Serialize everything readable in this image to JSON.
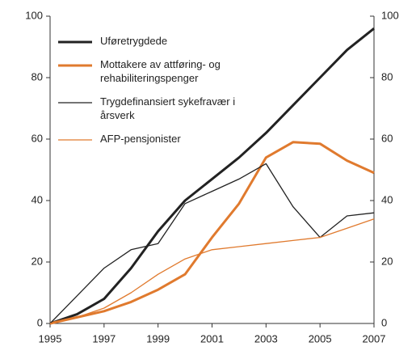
{
  "chart_data": {
    "type": "line",
    "x": [
      1995,
      1996,
      1997,
      1998,
      1999,
      2000,
      2001,
      2002,
      2003,
      2004,
      2005,
      2006,
      2007
    ],
    "xlim": [
      1995,
      2007
    ],
    "xticks": [
      1995,
      1997,
      1999,
      2001,
      2003,
      2005,
      2007
    ],
    "ylim": [
      0,
      100
    ],
    "yticks": [
      0,
      20,
      40,
      60,
      80,
      100
    ],
    "y2lim": [
      0,
      100
    ],
    "y2ticks": [
      0,
      20,
      40,
      60,
      80,
      100
    ],
    "legend": "upper left",
    "series": [
      {
        "name": "Uføretrygdede",
        "color": "#222222",
        "line_width": 3,
        "values": [
          0,
          3,
          8,
          18,
          30,
          40,
          47,
          54,
          62,
          71,
          80,
          89,
          96
        ]
      },
      {
        "name": "Mottakere av attføring- og rehabiliteringspenger",
        "color": "#e07a2e",
        "line_width": 3,
        "values": [
          0,
          2,
          4,
          7,
          11,
          16,
          28,
          39,
          54,
          59,
          58.5,
          53,
          49
        ]
      },
      {
        "name": "Trygdefinansiert sykefravær i årsverk",
        "color": "#222222",
        "line_width": 1.3,
        "values": [
          0,
          9,
          18,
          24,
          26,
          39,
          43,
          47,
          52,
          38,
          28,
          35,
          36
        ]
      },
      {
        "name": "AFP-pensjonister",
        "color": "#e07a2e",
        "line_width": 1.3,
        "values": [
          0,
          2,
          5,
          10,
          16,
          21,
          24,
          25,
          26,
          27,
          28,
          31,
          34
        ]
      }
    ]
  }
}
